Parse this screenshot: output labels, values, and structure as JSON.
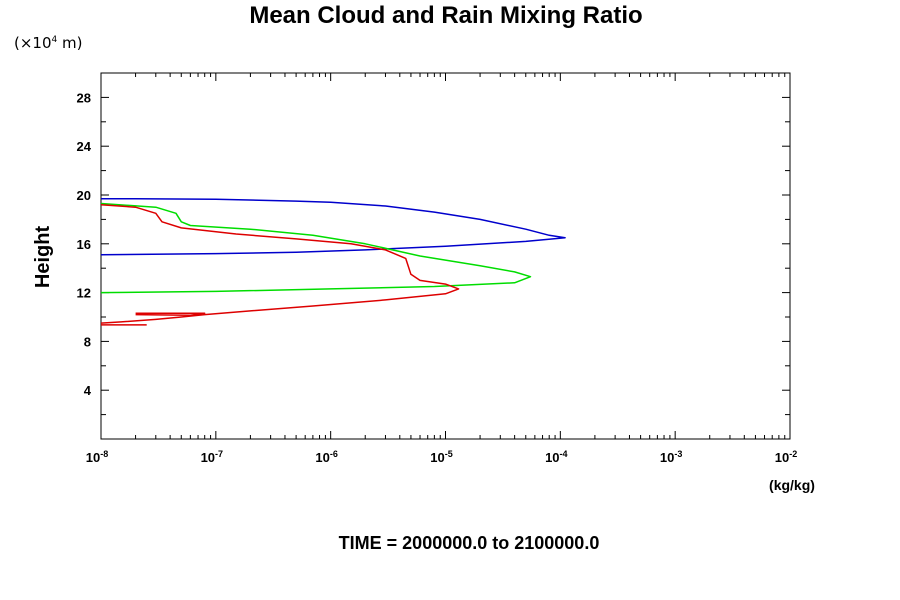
{
  "chart_data": {
    "type": "line",
    "title": "Mean Cloud and Rain Mixing Ratio",
    "y_units": "(×10",
    "y_units_exp": "4",
    "y_units_tail": " m)",
    "ylabel": "Height",
    "xlabel": "(kg/kg)",
    "footer": "TIME = 2000000.0 to 2100000.0",
    "x_scale": "log",
    "xlim": [
      1e-08,
      0.01
    ],
    "ylim": [
      0,
      30
    ],
    "x_ticks": [
      {
        "base": "10",
        "exp": "-8"
      },
      {
        "base": "10",
        "exp": "-7"
      },
      {
        "base": "10",
        "exp": "-6"
      },
      {
        "base": "10",
        "exp": "-5"
      },
      {
        "base": "10",
        "exp": "-4"
      },
      {
        "base": "10",
        "exp": "-3"
      },
      {
        "base": "10",
        "exp": "-2"
      }
    ],
    "y_ticks": [
      "4",
      "8",
      "12",
      "16",
      "20",
      "24",
      "28"
    ],
    "grid": false,
    "series": [
      {
        "color": "#0000cc",
        "points": [
          [
            1e-08,
            19.7
          ],
          [
            2e-08,
            19.7
          ],
          [
            1e-07,
            19.65
          ],
          [
            5e-07,
            19.5
          ],
          [
            1e-06,
            19.4
          ],
          [
            3e-06,
            19.1
          ],
          [
            8e-06,
            18.6
          ],
          [
            2e-05,
            18.0
          ],
          [
            5e-05,
            17.2
          ],
          [
            8e-05,
            16.7
          ],
          [
            0.00011,
            16.5
          ],
          [
            5e-05,
            16.2
          ],
          [
            1e-05,
            15.8
          ],
          [
            2e-06,
            15.5
          ],
          [
            5e-07,
            15.3
          ],
          [
            1e-07,
            15.2
          ],
          [
            1e-08,
            15.1
          ]
        ]
      },
      {
        "color": "#00dd00",
        "points": [
          [
            1e-08,
            19.3
          ],
          [
            3e-08,
            19.0
          ],
          [
            4.5e-08,
            18.5
          ],
          [
            5e-08,
            17.8
          ],
          [
            6e-08,
            17.5
          ],
          [
            2e-07,
            17.2
          ],
          [
            7e-07,
            16.7
          ],
          [
            2e-06,
            16.0
          ],
          [
            6e-06,
            15.0
          ],
          [
            2e-05,
            14.2
          ],
          [
            4e-05,
            13.7
          ],
          [
            5.5e-05,
            13.3
          ],
          [
            4e-05,
            12.8
          ],
          [
            8e-06,
            12.5
          ],
          [
            1e-06,
            12.3
          ],
          [
            1e-07,
            12.1
          ],
          [
            1e-08,
            12.0
          ]
        ]
      },
      {
        "color": "#dd0000",
        "points": [
          [
            1e-08,
            19.2
          ],
          [
            2e-08,
            19.0
          ],
          [
            3e-08,
            18.5
          ],
          [
            3.4e-08,
            17.8
          ],
          [
            5e-08,
            17.3
          ],
          [
            1.5e-07,
            16.8
          ],
          [
            5e-07,
            16.4
          ],
          [
            1.5e-06,
            16.0
          ],
          [
            3e-06,
            15.5
          ],
          [
            4.5e-06,
            14.8
          ],
          [
            5e-06,
            13.5
          ],
          [
            6e-06,
            13.0
          ],
          [
            1e-05,
            12.7
          ],
          [
            1.3e-05,
            12.3
          ],
          [
            1e-05,
            11.9
          ],
          [
            3e-06,
            11.4
          ],
          [
            7e-07,
            10.9
          ],
          [
            2e-07,
            10.5
          ],
          [
            8e-08,
            10.2
          ],
          [
            5e-08,
            10.0
          ],
          [
            3e-08,
            9.8
          ],
          [
            1.5e-08,
            9.6
          ],
          [
            1e-08,
            9.5
          ]
        ]
      },
      {
        "color": "#dd0000",
        "points": [
          [
            2e-08,
            10.3
          ],
          [
            8e-08,
            10.3
          ],
          [
            6e-08,
            10.15
          ],
          [
            2e-08,
            10.2
          ]
        ]
      },
      {
        "color": "#dd0000",
        "points": [
          [
            1e-08,
            9.35
          ],
          [
            2.5e-08,
            9.35
          ]
        ]
      }
    ]
  }
}
